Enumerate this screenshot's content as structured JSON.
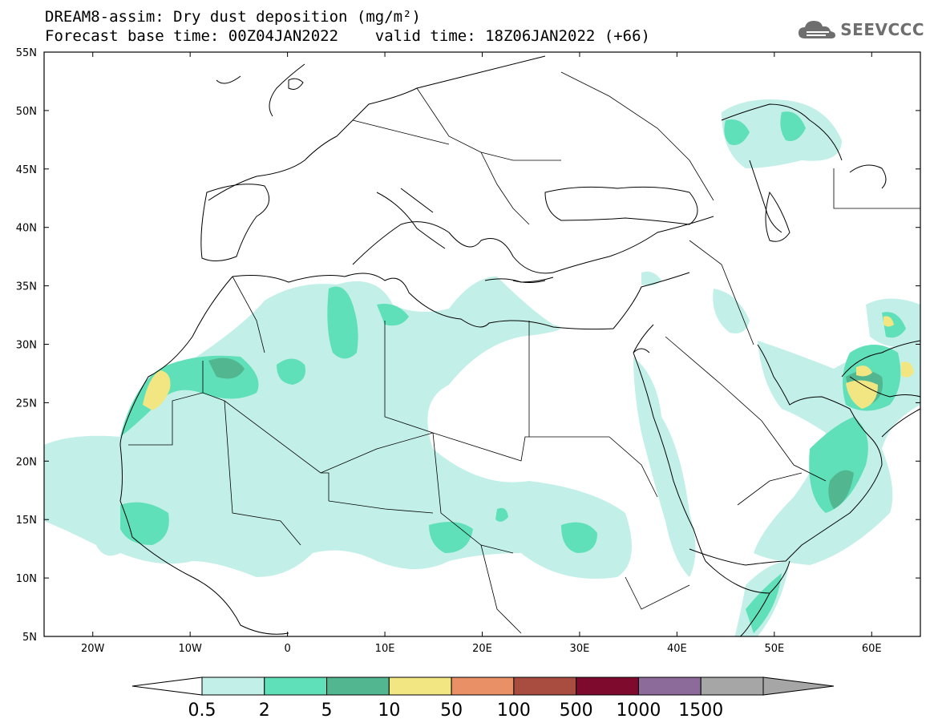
{
  "header": {
    "title_line1": "DREAM8-assim: Dry dust deposition (mg/m²)",
    "title_line2": "Forecast base time: 00Z04JAN2022    valid time: 18Z06JAN2022 (+66)",
    "logo": "SEEVCCC"
  },
  "map": {
    "lat_labels": [
      "55N",
      "50N",
      "45N",
      "40N",
      "35N",
      "30N",
      "25N",
      "20N",
      "15N",
      "10N",
      "5N"
    ],
    "lon_labels": [
      "20W",
      "10W",
      "0",
      "10E",
      "20E",
      "30E",
      "40E",
      "50E",
      "60E"
    ],
    "lat_values": [
      55,
      50,
      45,
      40,
      35,
      30,
      25,
      20,
      15,
      10,
      5
    ],
    "lon_values": [
      -20,
      -10,
      0,
      10,
      20,
      30,
      40,
      50,
      60
    ],
    "extent": {
      "lon_min": -25,
      "lon_max": 65,
      "lat_min": 5,
      "lat_max": 55
    }
  },
  "legend": {
    "labels": [
      "0.5",
      "2",
      "5",
      "10",
      "50",
      "100",
      "500",
      "1000",
      "1500"
    ],
    "colors": [
      "#c2f0e8",
      "#5fe0b8",
      "#52b791",
      "#f2e682",
      "#e99066",
      "#a84d40",
      "#7e0b2e",
      "#8c6a9a",
      "#a6a6a6"
    ],
    "under_color": "#ffffff"
  },
  "colors": {
    "level1": "#c2f0e8",
    "level2": "#5fe0b8",
    "level3": "#52b791",
    "level4": "#f2e682",
    "coast": "#000000"
  }
}
